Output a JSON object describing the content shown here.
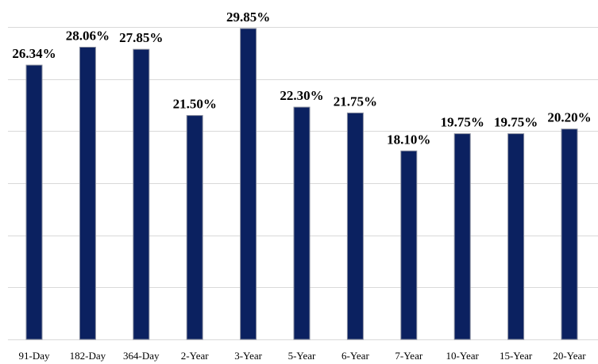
{
  "chart_data": {
    "type": "bar",
    "categories": [
      "91-Day",
      "182-Day",
      "364-Day",
      "2-Year",
      "3-Year",
      "5-Year",
      "6-Year",
      "7-Year",
      "10-Year",
      "15-Year",
      "20-Year"
    ],
    "values": [
      26.34,
      28.06,
      27.85,
      21.5,
      29.85,
      22.3,
      21.75,
      18.1,
      19.75,
      19.75,
      20.2
    ],
    "data_labels": [
      "26.34%",
      "28.06%",
      "27.85%",
      "21.50%",
      "29.85%",
      "22.30%",
      "21.75%",
      "18.10%",
      "19.75%",
      "19.75%",
      "20.20%"
    ],
    "ylim": [
      0,
      30
    ],
    "grid": true,
    "bar_color": "#0b2160"
  }
}
